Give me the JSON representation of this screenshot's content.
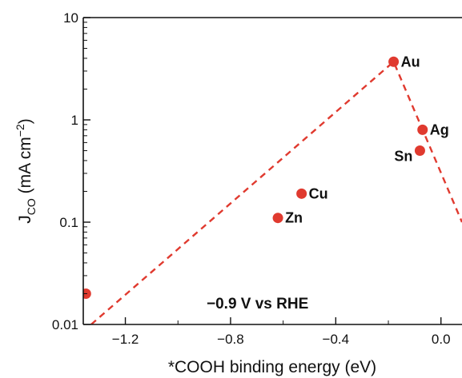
{
  "chart_data": {
    "type": "scatter",
    "title": "",
    "xlabel": "*COOH binding energy (eV)",
    "ylabel_main": "J",
    "ylabel_sub": "CO",
    "ylabel_rest": " (mA cm",
    "ylabel_sup": "−2",
    "ylabel_close": ")",
    "xlim": [
      -1.36,
      0.08
    ],
    "ylim": [
      0.01,
      10
    ],
    "y_scale": "log",
    "grid": false,
    "legend": "none",
    "x_ticks": [
      {
        "value": -1.2,
        "label": "−1.2"
      },
      {
        "value": -0.8,
        "label": "−0.8"
      },
      {
        "value": -0.4,
        "label": "−0.4"
      },
      {
        "value": 0.0,
        "label": "0.0"
      }
    ],
    "y_ticks": [
      {
        "value": 0.01,
        "label": "0.01"
      },
      {
        "value": 0.1,
        "label": "0.1"
      },
      {
        "value": 1,
        "label": "1"
      },
      {
        "value": 10,
        "label": "10"
      }
    ],
    "points": [
      {
        "label": "",
        "x": -1.35,
        "y": 0.02,
        "label_pos": "none"
      },
      {
        "label": "Zn",
        "x": -0.62,
        "y": 0.11,
        "label_pos": "right"
      },
      {
        "label": "Cu",
        "x": -0.53,
        "y": 0.19,
        "label_pos": "right"
      },
      {
        "label": "Au",
        "x": -0.18,
        "y": 3.7,
        "label_pos": "right"
      },
      {
        "label": "Ag",
        "x": -0.07,
        "y": 0.8,
        "label_pos": "right"
      },
      {
        "label": "Sn",
        "x": -0.08,
        "y": 0.5,
        "label_pos": "left"
      }
    ],
    "trend_line": [
      {
        "x": -1.33,
        "y": 0.01
      },
      {
        "x": -0.18,
        "y": 3.7
      },
      {
        "x": 0.08,
        "y": 0.1
      }
    ],
    "annotation": "−0.9 V vs RHE",
    "colors": {
      "points": "#e03a2f",
      "trend": "#e03a2f",
      "axis": "#111111"
    }
  }
}
